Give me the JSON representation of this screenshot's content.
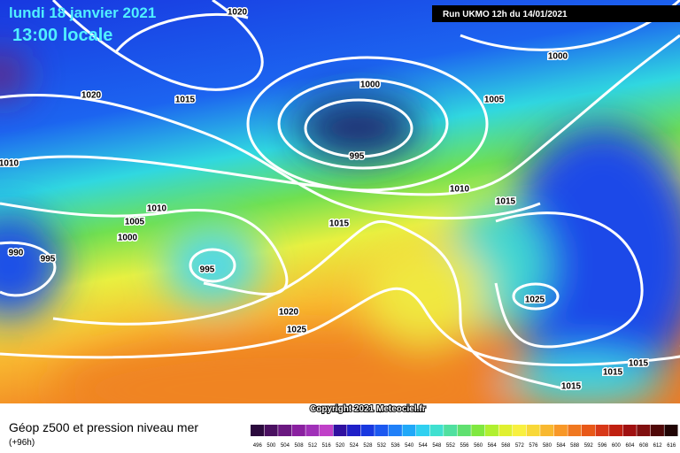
{
  "header": {
    "title": "lundi 18 janvier 2021",
    "subtitle": "13:00 locale",
    "run": "Run UKMO 12h du 14/01/2021"
  },
  "isobar_labels": [
    "1020",
    "1020",
    "1015",
    "1010",
    "1000",
    "995",
    "1005",
    "1000",
    "1010",
    "1015",
    "1010",
    "1005",
    "1000",
    "1015",
    "990",
    "995",
    "995",
    "1025",
    "1020",
    "1025",
    "1015",
    "1015",
    "1015"
  ],
  "copyright": "Copyright 2021 Meteociel.fr",
  "footer": {
    "title": "Géop z500 et pression niveau mer",
    "lead": "(+96h)"
  },
  "scale": {
    "labels": [
      "496",
      "500",
      "504",
      "508",
      "512",
      "516",
      "520",
      "524",
      "528",
      "532",
      "536",
      "540",
      "544",
      "548",
      "552",
      "556",
      "560",
      "564",
      "568",
      "572",
      "576",
      "580",
      "584",
      "588",
      "592",
      "596",
      "600",
      "604",
      "608",
      "612",
      "616"
    ],
    "colors": [
      "#2b0a3d",
      "#4a1060",
      "#6a1880",
      "#8a20a0",
      "#a030b8",
      "#c040c8",
      "#3010a0",
      "#2020c8",
      "#1838e0",
      "#1c58f0",
      "#2080f8",
      "#20a8f8",
      "#30d0f0",
      "#40e0d0",
      "#50e0a0",
      "#60e070",
      "#80e840",
      "#b0f030",
      "#e0f030",
      "#f8f040",
      "#f8d838",
      "#f8b830",
      "#f89828",
      "#f07820",
      "#e85818",
      "#d83818",
      "#c02010",
      "#a01010",
      "#801010",
      "#500808",
      "#200404"
    ]
  }
}
